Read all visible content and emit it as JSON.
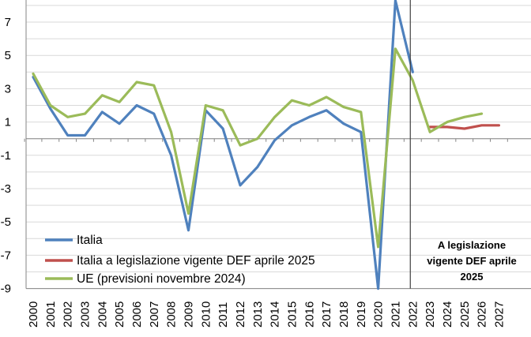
{
  "chart_data": {
    "type": "line",
    "x": [
      "2000",
      "2001",
      "2002",
      "2003",
      "2004",
      "2005",
      "2006",
      "2007",
      "2008",
      "2009",
      "2010",
      "2011",
      "2012",
      "2013",
      "2014",
      "2015",
      "2016",
      "2017",
      "2018",
      "2019",
      "2020",
      "2021",
      "2022",
      "2023",
      "2024",
      "2025",
      "2026",
      "2027"
    ],
    "y_ticks": [
      "7",
      "5",
      "3",
      "1",
      "-1",
      "-3",
      "-5",
      "-7",
      "-9"
    ],
    "ylim": [
      -9,
      8.3
    ],
    "grid": true,
    "legend_position": "bottom-left",
    "series": [
      {
        "name": "Italia",
        "color": "#4f81bd",
        "values": [
          3.7,
          1.8,
          0.2,
          0.2,
          1.6,
          0.9,
          2.0,
          1.5,
          -1.0,
          -5.5,
          1.7,
          0.6,
          -2.8,
          -1.7,
          -0.1,
          0.8,
          1.3,
          1.7,
          0.9,
          0.4,
          -9.0,
          8.3,
          4.0,
          null,
          null,
          null,
          null,
          null
        ]
      },
      {
        "name": "Italia a legislazione vigente DEF aprile 2025",
        "color": "#c0504d",
        "values": [
          null,
          null,
          null,
          null,
          null,
          null,
          null,
          null,
          null,
          null,
          null,
          null,
          null,
          null,
          null,
          null,
          null,
          null,
          null,
          null,
          null,
          null,
          null,
          0.7,
          0.7,
          0.6,
          0.8,
          0.8
        ]
      },
      {
        "name": "UE (previsioni novembre 2024)",
        "color": "#9bbb59",
        "values": [
          3.9,
          2.0,
          1.3,
          1.5,
          2.6,
          2.2,
          3.4,
          3.2,
          0.4,
          -4.5,
          2.0,
          1.7,
          -0.4,
          0.0,
          1.3,
          2.3,
          2.0,
          2.5,
          1.9,
          1.6,
          -6.5,
          5.4,
          3.5,
          0.4,
          1.0,
          1.3,
          1.5,
          null
        ]
      }
    ],
    "annotation": {
      "lines": [
        "A legislazione",
        "vigente DEF aprile",
        "2025"
      ],
      "boundary_after": "2022"
    }
  }
}
